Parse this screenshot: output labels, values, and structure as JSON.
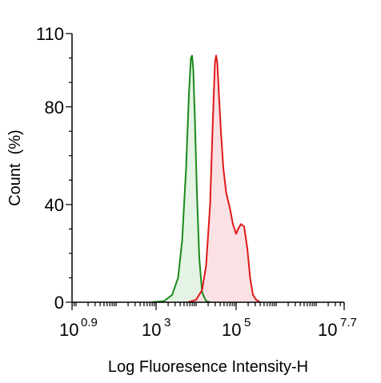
{
  "chart_data": {
    "type": "area",
    "title": "",
    "xlabel": "Log Fluoresence Intensity-H",
    "ylabel": "Count  (%)",
    "x_scale": "log",
    "xlim_exp": [
      0.9,
      7.7
    ],
    "ylim": [
      0,
      110
    ],
    "y_ticks": [
      "0",
      "40",
      "80",
      "110"
    ],
    "x_ticks": [
      {
        "base": "10",
        "exp": "0.9"
      },
      {
        "base": "10",
        "exp": "3"
      },
      {
        "base": "10",
        "exp": "5"
      },
      {
        "base": "10",
        "exp": "7.7"
      }
    ],
    "grid": false,
    "series": [
      {
        "color": "#1a8a1a",
        "fill": "#e4f3e4",
        "points": [
          [
            2.9,
            0
          ],
          [
            3.2,
            0.5
          ],
          [
            3.4,
            3
          ],
          [
            3.55,
            10
          ],
          [
            3.65,
            25
          ],
          [
            3.75,
            55
          ],
          [
            3.82,
            85
          ],
          [
            3.87,
            100
          ],
          [
            3.9,
            101
          ],
          [
            3.93,
            95
          ],
          [
            3.97,
            75
          ],
          [
            4.02,
            45
          ],
          [
            4.08,
            18
          ],
          [
            4.15,
            4
          ],
          [
            4.25,
            0.5
          ],
          [
            4.35,
            0
          ]
        ]
      },
      {
        "color": "#e01818",
        "fill": "#fbe1e4",
        "points": [
          [
            3.8,
            0
          ],
          [
            4.0,
            1
          ],
          [
            4.15,
            5
          ],
          [
            4.25,
            15
          ],
          [
            4.35,
            40
          ],
          [
            4.42,
            75
          ],
          [
            4.47,
            98
          ],
          [
            4.5,
            101
          ],
          [
            4.53,
            98
          ],
          [
            4.57,
            85
          ],
          [
            4.62,
            70
          ],
          [
            4.68,
            55
          ],
          [
            4.75,
            45
          ],
          [
            4.85,
            38
          ],
          [
            4.92,
            32
          ],
          [
            5.0,
            28
          ],
          [
            5.05,
            30
          ],
          [
            5.12,
            32
          ],
          [
            5.2,
            31
          ],
          [
            5.28,
            22
          ],
          [
            5.35,
            10
          ],
          [
            5.42,
            3
          ],
          [
            5.5,
            1
          ],
          [
            5.6,
            0
          ]
        ]
      }
    ]
  }
}
